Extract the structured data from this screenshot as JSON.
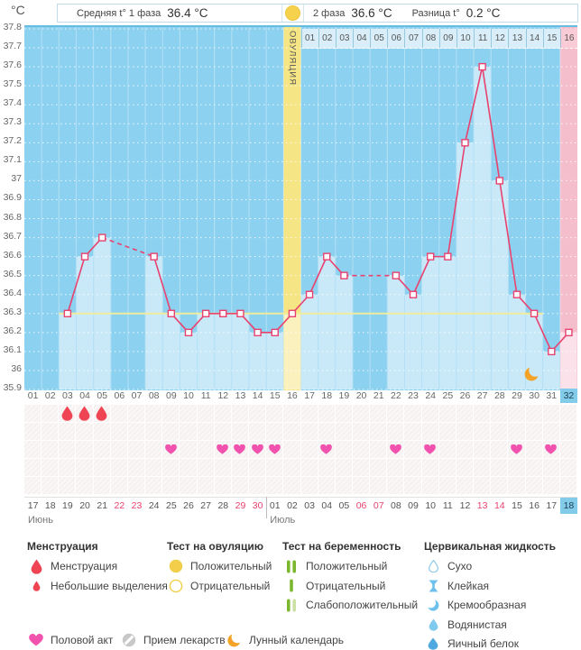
{
  "header": {
    "unit": "°C",
    "avg_phase1_label": "Средняя t° 1 фаза",
    "avg_phase1_value": "36.4 °C",
    "phase2_label": "2 фаза",
    "phase2_value": "36.6 °C",
    "diff_label": "Разница t°",
    "diff_value": "0.2 °C"
  },
  "chart_data": {
    "type": "line",
    "ylabel": "°C",
    "ylim": [
      35.9,
      37.8
    ],
    "ytick_step": 0.1,
    "grid": "dotted-white",
    "day_count": 32,
    "days": [
      "01",
      "02",
      "03",
      "04",
      "05",
      "06",
      "07",
      "08",
      "09",
      "10",
      "11",
      "12",
      "13",
      "14",
      "15",
      "16",
      "17",
      "18",
      "19",
      "20",
      "21",
      "22",
      "23",
      "24",
      "25",
      "26",
      "27",
      "28",
      "29",
      "30",
      "31",
      "32"
    ],
    "temps": [
      null,
      null,
      36.3,
      36.6,
      36.7,
      null,
      null,
      36.6,
      36.3,
      36.2,
      36.3,
      36.3,
      36.3,
      36.2,
      36.2,
      36.3,
      36.4,
      36.6,
      36.5,
      null,
      null,
      36.5,
      36.4,
      36.6,
      36.6,
      37.2,
      37.6,
      37.0,
      36.4,
      36.3,
      36.1,
      36.2
    ],
    "coverline": {
      "value": 36.3,
      "from_day": 3,
      "to_day": 30
    },
    "ovulation_day": 16,
    "ovulation_label": "ОВУЛЯЦИЯ",
    "phase2_day_labels": [
      "01",
      "02",
      "03",
      "04",
      "05",
      "06",
      "07",
      "08",
      "09",
      "10",
      "11",
      "12",
      "13",
      "14",
      "15",
      "16"
    ],
    "current_day": 32,
    "moon_day": 30,
    "menstruation_days": [
      3,
      4,
      5
    ],
    "intercourse_days": [
      9,
      12,
      13,
      14,
      15,
      18,
      22,
      24,
      29,
      31
    ],
    "dates": [
      {
        "label": "17"
      },
      {
        "label": "18"
      },
      {
        "label": "19"
      },
      {
        "label": "20"
      },
      {
        "label": "21"
      },
      {
        "label": "22",
        "weekend": true
      },
      {
        "label": "23",
        "weekend": true
      },
      {
        "label": "24"
      },
      {
        "label": "25"
      },
      {
        "label": "26"
      },
      {
        "label": "27"
      },
      {
        "label": "28"
      },
      {
        "label": "29",
        "weekend": true
      },
      {
        "label": "30",
        "weekend": true
      },
      {
        "label": "01"
      },
      {
        "label": "02"
      },
      {
        "label": "03"
      },
      {
        "label": "04"
      },
      {
        "label": "05"
      },
      {
        "label": "06",
        "weekend": true
      },
      {
        "label": "07",
        "weekend": true
      },
      {
        "label": "08"
      },
      {
        "label": "09"
      },
      {
        "label": "10"
      },
      {
        "label": "11"
      },
      {
        "label": "12"
      },
      {
        "label": "13",
        "weekend": true
      },
      {
        "label": "14",
        "weekend": true
      },
      {
        "label": "15"
      },
      {
        "label": "16"
      },
      {
        "label": "17"
      },
      {
        "label": "18",
        "current": true
      }
    ],
    "months": [
      {
        "label": "Июнь",
        "from_day": 1
      },
      {
        "label": "Июль",
        "from_day": 15
      }
    ]
  },
  "legend": {
    "groups": [
      {
        "title": "Менструация",
        "items": [
          {
            "icon": "drop-large",
            "label": "Менструация"
          },
          {
            "icon": "drop-small",
            "label": "Небольшие выделения"
          }
        ]
      },
      {
        "title": "Тест на овуляцию",
        "items": [
          {
            "icon": "circle-filled-yellow",
            "label": "Положительный"
          },
          {
            "icon": "circle-outline-yellow",
            "label": "Отрицательный"
          }
        ]
      },
      {
        "title": "Тест на беременность",
        "items": [
          {
            "icon": "bars-two-green",
            "label": "Положительный"
          },
          {
            "icon": "bar-one-green",
            "label": "Отрицательный"
          },
          {
            "icon": "bars-green-pale",
            "label": "Слабоположительный"
          }
        ]
      },
      {
        "title": "Цервикальная жидкость",
        "items": [
          {
            "icon": "drop-outline-blue",
            "label": "Сухо"
          },
          {
            "icon": "spool-blue",
            "label": "Клейкая"
          },
          {
            "icon": "crescent-blue",
            "label": "Кремообразная"
          },
          {
            "icon": "drop-blue",
            "label": "Водянистая"
          },
          {
            "icon": "drop-solid-blue",
            "label": "Яичный белок"
          }
        ]
      }
    ],
    "footer": [
      {
        "icon": "heart-pink",
        "label": "Половой акт"
      },
      {
        "icon": "pill-grey",
        "label": "Прием лекарств"
      },
      {
        "icon": "moon-orange",
        "label": "Лунный календарь"
      }
    ]
  },
  "colors": {
    "accent_line": "#e8426e",
    "chart_bg": "#8dd1f0",
    "bar": "#c9e9f9",
    "ovulation_band": "#f6e584",
    "ovulation_bar": "#faf1bf",
    "phase2_band": "#f5becd",
    "phase2_bar": "#fbe1e9",
    "coverline": "#f1ec9b",
    "grid": "#ffffff",
    "menstruation": "#ef4454",
    "heart": "#f052ae",
    "moon": "#f5a228",
    "test_positive": "#f2ce4b",
    "preg_bar": "#7cb82f",
    "preg_bar_pale": "#cce0a5",
    "cervical": "#6ec1ed",
    "cervical_light": "#7fc9ef",
    "cervical_solid": "#4fa8de",
    "pill": "#c8c8c8",
    "highlight_day": "#82cbe9",
    "weekend_date": "#e8426e"
  }
}
